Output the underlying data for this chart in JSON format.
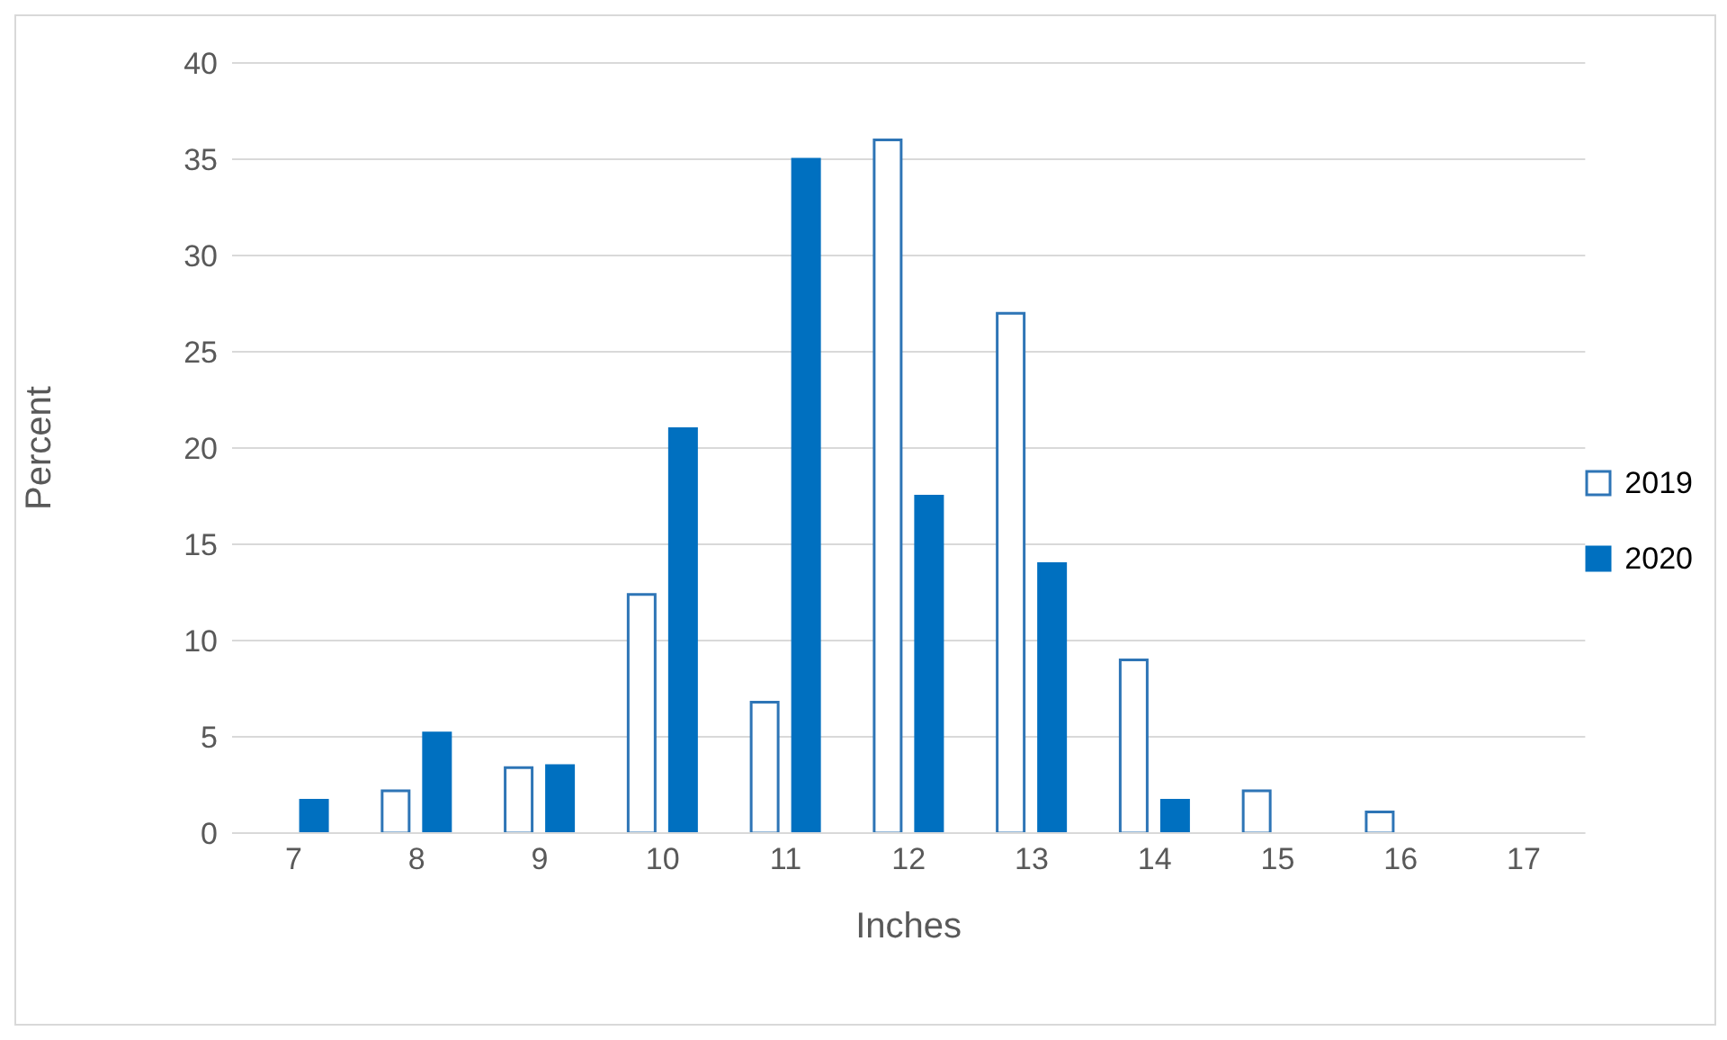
{
  "chart_data": {
    "type": "bar",
    "xlabel": "Inches",
    "ylabel": "Percent",
    "categories": [
      "7",
      "8",
      "9",
      "10",
      "11",
      "12",
      "13",
      "14",
      "15",
      "16",
      "17"
    ],
    "series": [
      {
        "name": "2019",
        "color": "#2e75b6",
        "values": [
          null,
          2.2,
          3.4,
          12.4,
          6.8,
          36,
          27,
          9,
          2.2,
          1.1,
          null
        ]
      },
      {
        "name": "2020",
        "color": "#0070c0",
        "values": [
          1.7,
          5.2,
          3.5,
          21,
          35,
          17.5,
          14,
          1.7,
          null,
          null,
          null
        ]
      }
    ],
    "ylim": [
      0,
      40
    ],
    "yticks": [
      0,
      5,
      10,
      15,
      20,
      25,
      30,
      35,
      40
    ],
    "grid": "y",
    "legend": "right"
  }
}
